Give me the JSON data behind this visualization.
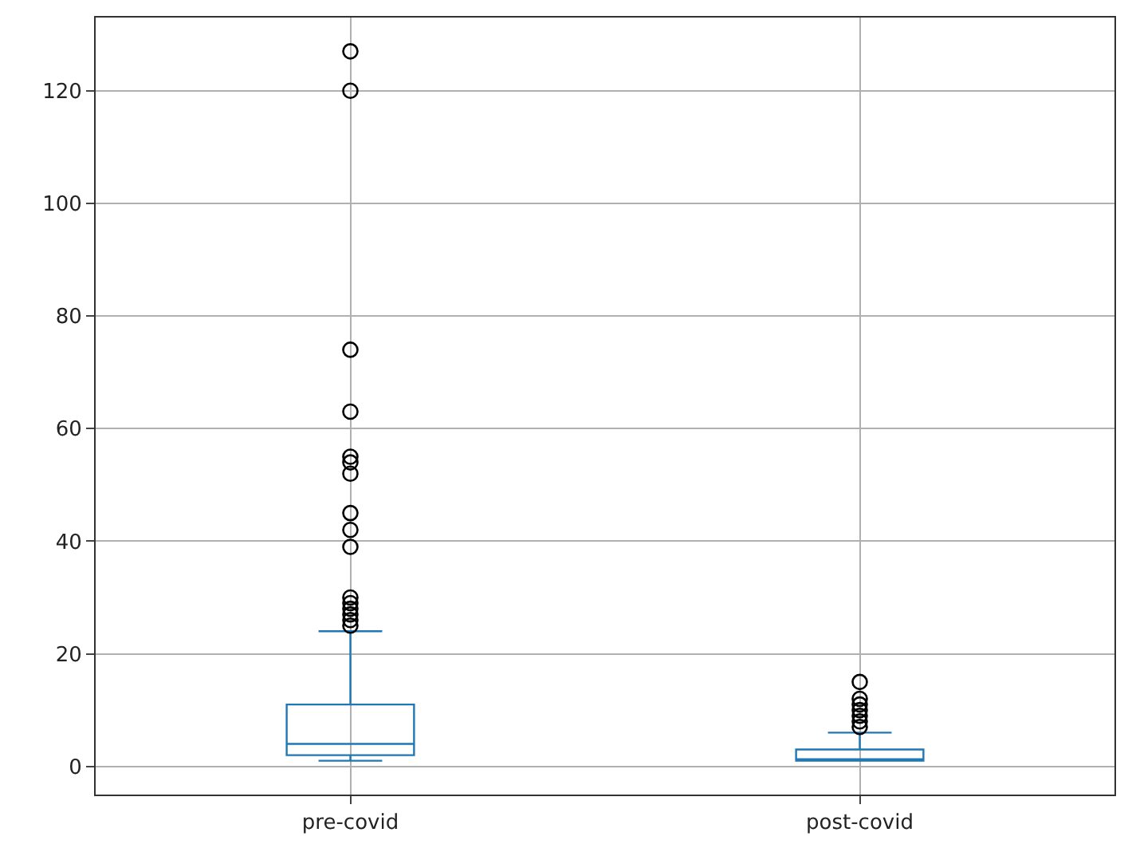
{
  "chart_data": {
    "type": "box",
    "categories": [
      "pre-covid",
      "post-covid"
    ],
    "series": [
      {
        "color": "#1f77b4",
        "boxes": [
          {
            "low": 1,
            "q1": 2,
            "median": 4,
            "q3": 11,
            "high": 24,
            "outliers": [
              25,
              26,
              27,
              28,
              29,
              30,
              39,
              42,
              45,
              52,
              54,
              55,
              63,
              74,
              120,
              127
            ]
          },
          {
            "low": 1,
            "q1": 1,
            "median": 1,
            "q3": 3,
            "high": 6,
            "outliers": [
              7,
              8,
              9,
              10,
              11,
              12,
              15
            ]
          }
        ]
      }
    ],
    "ylim": [
      -5,
      133
    ],
    "yticks": [
      0,
      20,
      40,
      60,
      80,
      100,
      120
    ],
    "grid": true
  }
}
